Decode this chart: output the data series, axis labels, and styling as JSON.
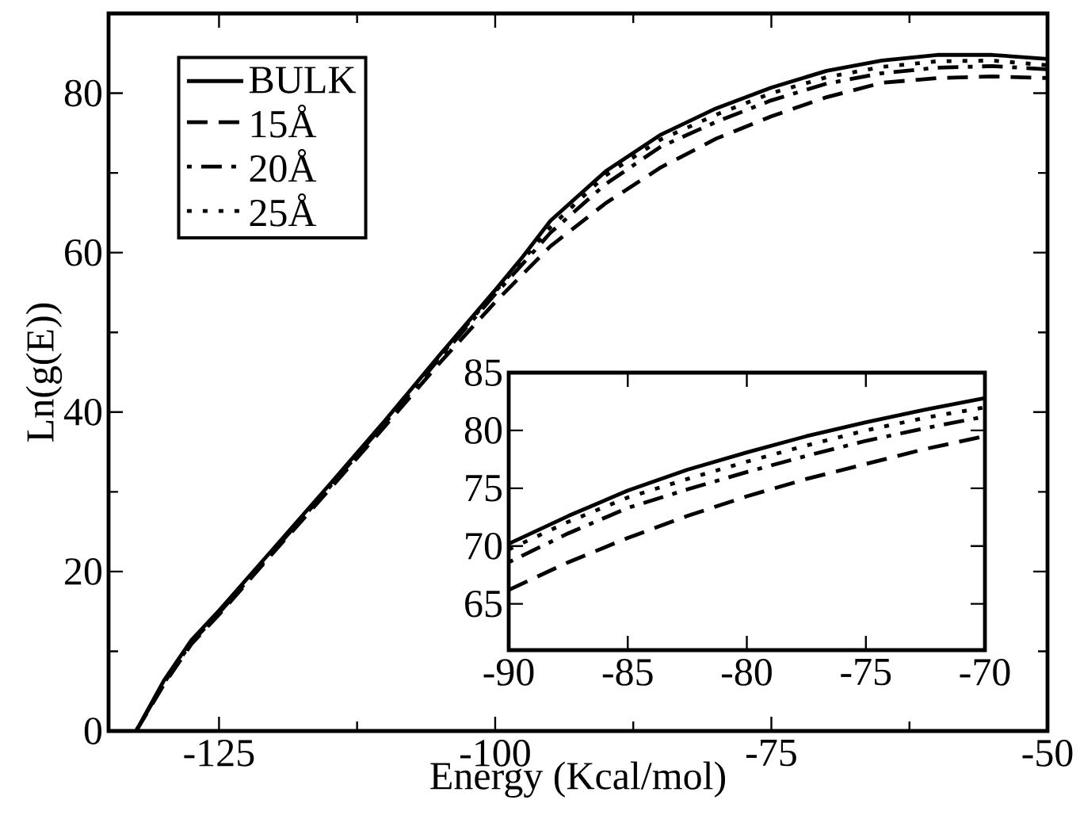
{
  "chart_data": [
    {
      "type": "line",
      "xlabel": "Energy (Kcal/mol)",
      "ylabel": "Ln(g(E))",
      "legend": "top left",
      "xlim": [
        -135,
        -50
      ],
      "ylim": [
        0,
        90
      ],
      "xticks": [
        -125,
        -100,
        -75,
        -50,
        {
          "value": -112.5,
          "label": null
        },
        {
          "value": -87.5,
          "label": null
        },
        {
          "value": -62.5,
          "label": null
        }
      ],
      "yticks": [
        0,
        20,
        40,
        60,
        80,
        {
          "value": 10,
          "label": null
        },
        {
          "value": 30,
          "label": null
        },
        {
          "value": 50,
          "label": null
        },
        {
          "value": 70,
          "label": null
        }
      ],
      "x": [
        -132.5,
        -130,
        -127.5,
        -125,
        -120,
        -115,
        -110,
        -105,
        -100,
        -97.5,
        -95,
        -90,
        -85,
        -80,
        -75,
        -70,
        -65,
        -60,
        -55,
        -50
      ],
      "series": [
        {
          "name": "BULK",
          "color": "#000000",
          "line_style": "solid",
          "values": [
            0,
            6.3,
            11.4,
            15.1,
            23.0,
            30.9,
            38.9,
            47.2,
            55.3,
            59.5,
            64.0,
            70.2,
            74.8,
            78.1,
            80.7,
            82.8,
            84.1,
            84.8,
            84.8,
            84.3
          ]
        },
        {
          "name": "15Å",
          "color": "#000000",
          "line_style": "dashed",
          "values": [
            0,
            5.8,
            10.9,
            14.6,
            22.5,
            30.3,
            38.2,
            46.2,
            53.8,
            57.3,
            60.8,
            66.2,
            70.7,
            74.3,
            77.1,
            79.5,
            81.3,
            81.9,
            82.1,
            81.9
          ]
        },
        {
          "name": "20Å",
          "color": "#000000",
          "line_style": "dashdot",
          "values": [
            0,
            6.0,
            11.1,
            14.8,
            22.7,
            30.6,
            38.6,
            46.8,
            54.8,
            58.6,
            62.5,
            68.6,
            73.3,
            76.4,
            79.1,
            81.2,
            82.5,
            83.2,
            83.4,
            83.0
          ]
        },
        {
          "name": "25Å",
          "color": "#000000",
          "line_style": "dotted",
          "values": [
            0,
            6.1,
            11.2,
            14.9,
            22.8,
            30.7,
            38.7,
            47.0,
            55.1,
            59.1,
            63.2,
            69.7,
            74.2,
            77.3,
            80.0,
            82.0,
            83.3,
            84.0,
            84.1,
            83.5
          ]
        }
      ]
    },
    {
      "type": "line",
      "xlim": [
        -90,
        -70
      ],
      "ylim": [
        61,
        85
      ],
      "xticks": [
        -90,
        -85,
        -80,
        -75,
        -70
      ],
      "yticks": [
        65,
        70,
        75,
        80,
        85
      ],
      "x": [
        -90,
        -87.5,
        -85,
        -82.5,
        -80,
        -77.5,
        -75,
        -72.5,
        -70
      ],
      "series": [
        {
          "color": "#000000",
          "line_style": "solid",
          "values": [
            70.2,
            72.6,
            74.8,
            76.6,
            78.1,
            79.5,
            80.7,
            81.8,
            82.8
          ]
        },
        {
          "color": "#000000",
          "line_style": "dashed",
          "values": [
            66.2,
            68.6,
            70.7,
            72.6,
            74.3,
            75.8,
            77.1,
            78.4,
            79.5
          ]
        },
        {
          "color": "#000000",
          "line_style": "dashdot",
          "values": [
            68.6,
            71.1,
            73.3,
            74.9,
            76.4,
            77.8,
            79.1,
            80.2,
            81.2
          ]
        },
        {
          "color": "#000000",
          "line_style": "dotted",
          "values": [
            69.7,
            72.1,
            74.2,
            75.8,
            77.3,
            78.7,
            80.0,
            81.1,
            82.0
          ]
        }
      ]
    }
  ]
}
